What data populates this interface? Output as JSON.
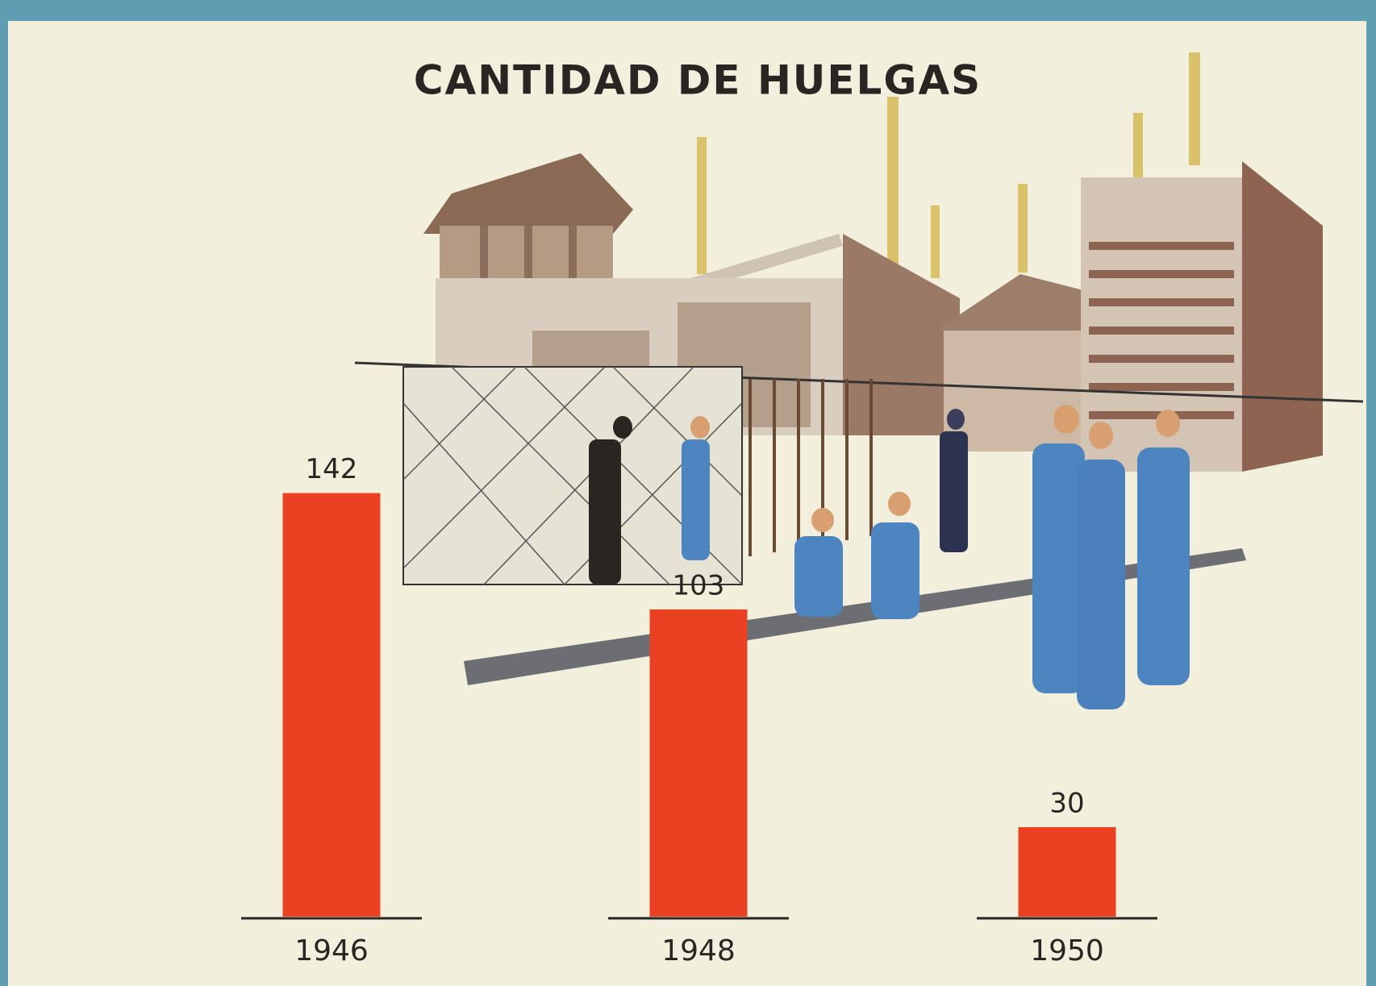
{
  "chart_data": {
    "type": "bar",
    "title": "CANTIDAD DE HUELGAS",
    "categories": [
      "1946",
      "1948",
      "1950"
    ],
    "values": [
      142,
      103,
      30
    ],
    "color": "#ea4122"
  }
}
